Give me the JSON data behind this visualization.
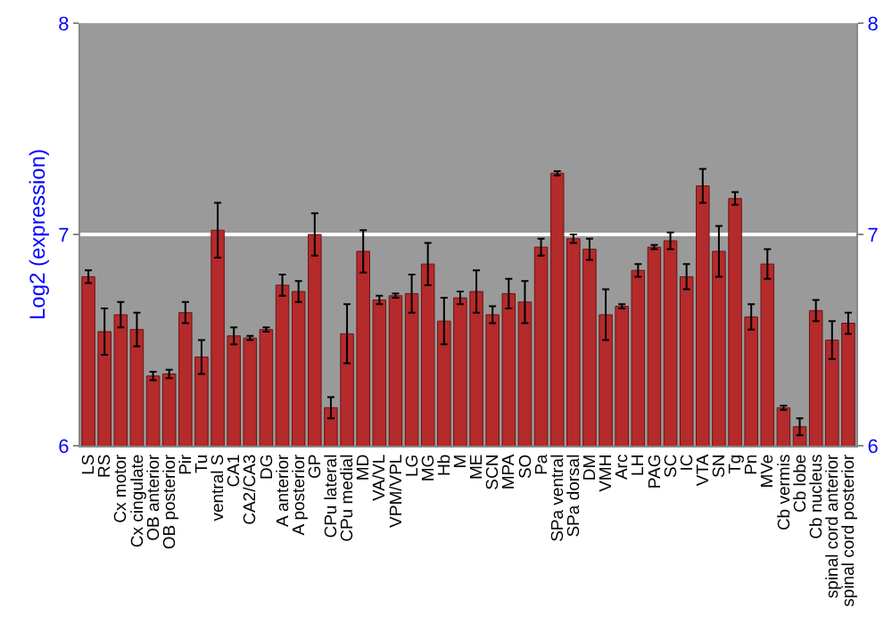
{
  "chart_data": {
    "type": "bar",
    "ylabel": "Log2 (expression)",
    "categories": [
      "LS",
      "RS",
      "Cx motor",
      "Cx cingulate",
      "OB anterior",
      "OB posterior",
      "Pir",
      "Tu",
      "ventral S",
      "CA1",
      "CA2/CA3",
      "DG",
      "A anterior",
      "A posterior",
      "GP",
      "CPu lateral",
      "CPu medial",
      "MD",
      "VA/VL",
      "VPM/VPL",
      "LG",
      "MG",
      "Hb",
      "M",
      "ME",
      "SCN",
      "MPA",
      "SO",
      "Pa",
      "SPa ventral",
      "SPa dorsal",
      "DM",
      "VMH",
      "Arc",
      "LH",
      "PAG",
      "SC",
      "IC",
      "VTA",
      "SN",
      "Tg",
      "Pn",
      "MVe",
      "Cb vermis",
      "Cb lobe",
      "Cb nucleus",
      "spinal cord anterior",
      "spinal cord posterior"
    ],
    "values": [
      6.8,
      6.54,
      6.62,
      6.55,
      6.33,
      6.34,
      6.63,
      6.42,
      7.02,
      6.52,
      6.51,
      6.55,
      6.76,
      6.73,
      7.0,
      6.18,
      6.53,
      6.92,
      6.69,
      6.71,
      6.72,
      6.86,
      6.59,
      6.7,
      6.73,
      6.62,
      6.72,
      6.68,
      6.94,
      7.29,
      6.98,
      6.93,
      6.62,
      6.66,
      6.83,
      6.94,
      6.97,
      6.8,
      7.23,
      6.92,
      7.17,
      6.61,
      6.86,
      6.18,
      6.09,
      6.64,
      6.5,
      6.58
    ],
    "errors": [
      0.03,
      0.11,
      0.06,
      0.08,
      0.02,
      0.02,
      0.05,
      0.08,
      0.13,
      0.04,
      0.01,
      0.01,
      0.05,
      0.05,
      0.1,
      0.05,
      0.14,
      0.1,
      0.02,
      0.01,
      0.09,
      0.1,
      0.11,
      0.03,
      0.1,
      0.04,
      0.07,
      0.1,
      0.04,
      0.01,
      0.02,
      0.05,
      0.12,
      0.01,
      0.03,
      0.01,
      0.04,
      0.06,
      0.08,
      0.12,
      0.03,
      0.06,
      0.07,
      0.01,
      0.04,
      0.05,
      0.09,
      0.05
    ],
    "color": "#b52a2a",
    "ylim": [
      6,
      8
    ],
    "yticks": [
      6,
      7,
      8
    ],
    "y2lim": [
      6,
      8
    ],
    "y2ticks": [
      6,
      7,
      8
    ],
    "grid": "y",
    "legend": false
  }
}
